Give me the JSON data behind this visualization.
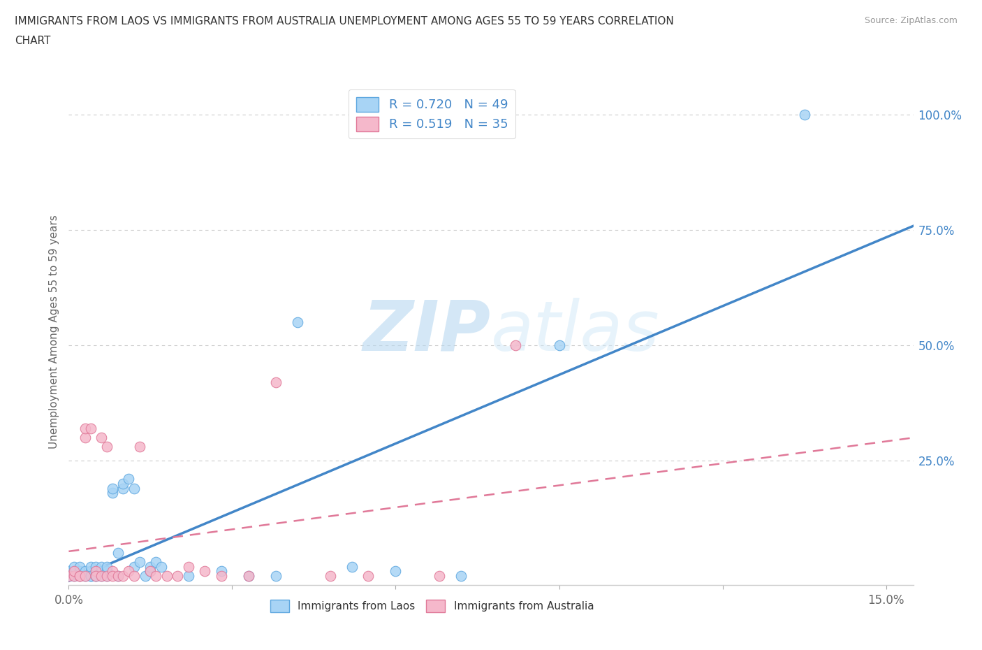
{
  "title_line1": "IMMIGRANTS FROM LAOS VS IMMIGRANTS FROM AUSTRALIA UNEMPLOYMENT AMONG AGES 55 TO 59 YEARS CORRELATION",
  "title_line2": "CHART",
  "source_text": "Source: ZipAtlas.com",
  "ylabel": "Unemployment Among Ages 55 to 59 years",
  "xlim": [
    0.0,
    0.155
  ],
  "ylim": [
    -0.02,
    1.08
  ],
  "ytick_positions": [
    0.25,
    0.5,
    0.75,
    1.0
  ],
  "ytick_labels": [
    "25.0%",
    "50.0%",
    "75.0%",
    "100.0%"
  ],
  "series_laos": {
    "color": "#a8d4f5",
    "edge_color": "#5fa8e0",
    "label": "Immigrants from Laos",
    "R": 0.72,
    "N": 49,
    "trend_color": "#4286c8",
    "x": [
      0.0,
      0.0,
      0.001,
      0.001,
      0.001,
      0.002,
      0.002,
      0.002,
      0.003,
      0.003,
      0.004,
      0.004,
      0.004,
      0.004,
      0.005,
      0.005,
      0.005,
      0.005,
      0.006,
      0.006,
      0.006,
      0.007,
      0.007,
      0.007,
      0.008,
      0.008,
      0.009,
      0.009,
      0.01,
      0.01,
      0.011,
      0.012,
      0.012,
      0.013,
      0.014,
      0.015,
      0.015,
      0.016,
      0.017,
      0.022,
      0.028,
      0.033,
      0.038,
      0.042,
      0.052,
      0.06,
      0.072,
      0.09,
      0.135
    ],
    "y": [
      0.0,
      0.01,
      0.0,
      0.01,
      0.02,
      0.0,
      0.01,
      0.02,
      0.0,
      0.01,
      0.0,
      0.01,
      0.02,
      0.0,
      0.0,
      0.01,
      0.02,
      0.0,
      0.0,
      0.01,
      0.02,
      0.0,
      0.01,
      0.02,
      0.18,
      0.19,
      0.0,
      0.05,
      0.19,
      0.2,
      0.21,
      0.02,
      0.19,
      0.03,
      0.0,
      0.01,
      0.02,
      0.03,
      0.02,
      0.0,
      0.01,
      0.0,
      0.0,
      0.55,
      0.02,
      0.01,
      0.0,
      0.5,
      1.0
    ]
  },
  "series_australia": {
    "color": "#f5b8cb",
    "edge_color": "#e07898",
    "label": "Immigrants from Australia",
    "R": 0.519,
    "N": 35,
    "trend_color": "#e07898",
    "x": [
      0.0,
      0.001,
      0.001,
      0.002,
      0.002,
      0.003,
      0.003,
      0.003,
      0.004,
      0.005,
      0.005,
      0.006,
      0.006,
      0.007,
      0.007,
      0.008,
      0.008,
      0.009,
      0.01,
      0.011,
      0.012,
      0.013,
      0.015,
      0.016,
      0.018,
      0.02,
      0.022,
      0.025,
      0.028,
      0.033,
      0.038,
      0.048,
      0.055,
      0.068,
      0.082
    ],
    "y": [
      0.0,
      0.0,
      0.01,
      0.0,
      0.0,
      0.3,
      0.32,
      0.0,
      0.32,
      0.01,
      0.0,
      0.3,
      0.0,
      0.28,
      0.0,
      0.01,
      0.0,
      0.0,
      0.0,
      0.01,
      0.0,
      0.28,
      0.01,
      0.0,
      0.0,
      0.0,
      0.02,
      0.01,
      0.0,
      0.0,
      0.42,
      0.0,
      0.0,
      0.0,
      0.5
    ]
  },
  "watermark_ZIP": "ZIP",
  "watermark_atlas": "atlas",
  "legend_R_color": "#4286c8",
  "grid_color": "#cccccc",
  "background_color": "#ffffff",
  "trend_laos_x0": 0.0,
  "trend_laos_x1": 0.155,
  "trend_aus_x0": 0.0,
  "trend_aus_x1": 0.155
}
